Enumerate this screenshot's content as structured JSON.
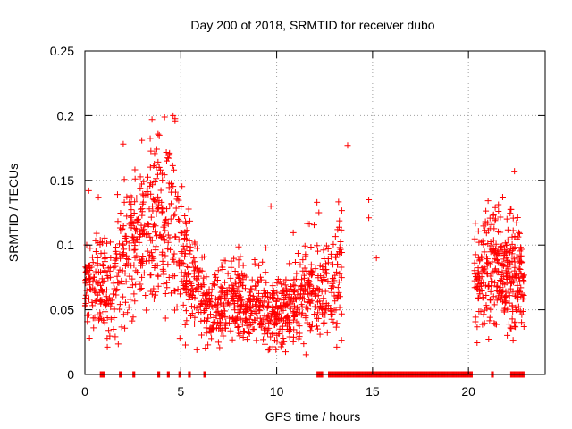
{
  "chart_data": {
    "type": "scatter",
    "title": "Day 200 of 2018, SRMTID for receiver dubo",
    "xlabel": "GPS time / hours",
    "ylabel": "SRMTID / TECUs",
    "xlim": [
      0,
      24
    ],
    "ylim": [
      0,
      0.25
    ],
    "xticks": [
      0,
      5,
      10,
      15,
      20
    ],
    "xtick_labels": [
      "0",
      "5",
      "10",
      "15",
      "20"
    ],
    "yticks": [
      0,
      0.05,
      0.1,
      0.15,
      0.2,
      0.25
    ],
    "ytick_labels": [
      "0",
      "0.05",
      "0.1",
      "0.15",
      "0.2",
      "0.25"
    ],
    "grid": true,
    "marker": "+",
    "color": "#ff0000",
    "series": [
      {
        "name": "SRMTID",
        "segments": [
          {
            "x_start": 0.0,
            "x_end": 12.7,
            "mean_hint": "variable 0.02-0.20"
          },
          {
            "x_start": 20.3,
            "x_end": 22.9,
            "mean_hint": "variable 0.02-0.16"
          }
        ],
        "profile": [
          [
            0.0,
            0.065
          ],
          [
            0.5,
            0.075
          ],
          [
            1.0,
            0.07
          ],
          [
            1.5,
            0.07
          ],
          [
            2.0,
            0.085
          ],
          [
            2.5,
            0.09
          ],
          [
            3.0,
            0.1
          ],
          [
            3.5,
            0.12
          ],
          [
            4.0,
            0.115
          ],
          [
            4.5,
            0.11
          ],
          [
            5.0,
            0.09
          ],
          [
            5.5,
            0.08
          ],
          [
            6.0,
            0.06
          ],
          [
            6.5,
            0.05
          ],
          [
            7.0,
            0.05
          ],
          [
            7.5,
            0.055
          ],
          [
            8.0,
            0.055
          ],
          [
            8.5,
            0.05
          ],
          [
            9.0,
            0.055
          ],
          [
            9.5,
            0.05
          ],
          [
            10.0,
            0.045
          ],
          [
            10.5,
            0.05
          ],
          [
            11.0,
            0.055
          ],
          [
            11.5,
            0.06
          ],
          [
            12.0,
            0.065
          ],
          [
            12.5,
            0.06
          ],
          [
            13.3,
            0.08
          ],
          [
            20.5,
            0.075
          ],
          [
            21.0,
            0.08
          ],
          [
            21.5,
            0.085
          ],
          [
            22.0,
            0.075
          ],
          [
            22.5,
            0.08
          ],
          [
            22.9,
            0.07
          ]
        ],
        "outliers": [
          [
            13.7,
            0.177
          ],
          [
            14.8,
            0.135
          ],
          [
            14.8,
            0.121
          ],
          [
            15.2,
            0.09
          ],
          [
            22.4,
            0.157
          ],
          [
            3.5,
            0.197
          ],
          [
            4.6,
            0.2
          ],
          [
            4.7,
            0.196
          ],
          [
            2.0,
            0.178
          ],
          [
            9.7,
            0.13
          ],
          [
            12.1,
            0.133
          ],
          [
            12.2,
            0.125
          ],
          [
            0.2,
            0.142
          ],
          [
            0.7,
            0.137
          ]
        ],
        "zero_ranges": [
          [
            0.8,
            1.0
          ],
          [
            1.8,
            1.9
          ],
          [
            2.5,
            2.6
          ],
          [
            3.8,
            3.9
          ],
          [
            4.3,
            4.4
          ],
          [
            4.9,
            5.0
          ],
          [
            5.4,
            5.5
          ],
          [
            6.2,
            6.3
          ],
          [
            12.1,
            12.4
          ],
          [
            12.7,
            20.2
          ],
          [
            21.2,
            21.3
          ],
          [
            22.2,
            22.9
          ]
        ]
      }
    ]
  }
}
